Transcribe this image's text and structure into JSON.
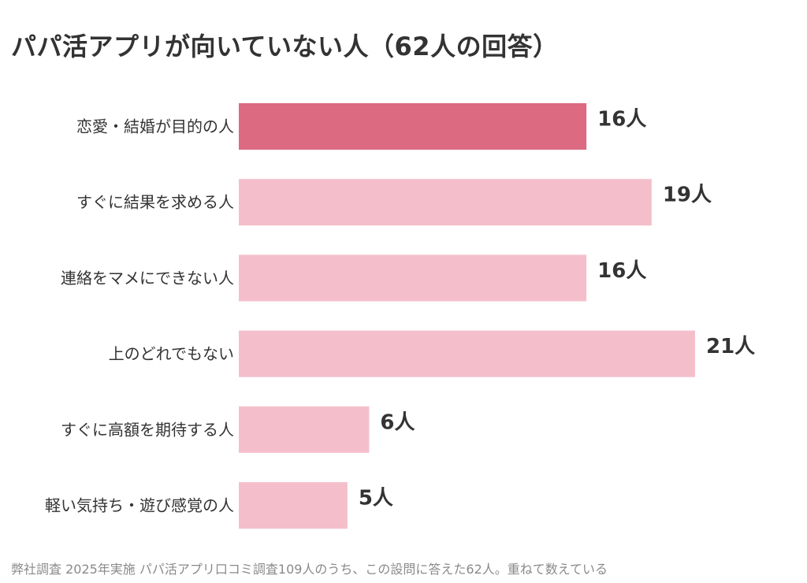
{
  "chart_data": {
    "type": "bar",
    "orientation": "horizontal",
    "title": "パパ活アプリが向いていない人（62人の回答）",
    "categories": [
      "恋愛・結婚が目的の人",
      "すぐに結果を求める人",
      "連絡をマメにできない人",
      "上のどれでもない",
      "すぐに高額を期待する人",
      "軽い気持ち・遊び感覚の人"
    ],
    "values": [
      16,
      19,
      16,
      21,
      6,
      5
    ],
    "value_labels": [
      "16人",
      "19人",
      "16人",
      "21人",
      "6人",
      "5人"
    ],
    "highlight_index": 0,
    "xlim": [
      0,
      21
    ],
    "grid": false,
    "legend": "none",
    "colors": {
      "highlight": "#dc6b82",
      "normal": "#f4bfcb"
    }
  },
  "footnote": "弊社調査 2025年実施 パパ活アプリ口コミ調査109人のうち、この設問に答えた62人。重ねて数えている"
}
